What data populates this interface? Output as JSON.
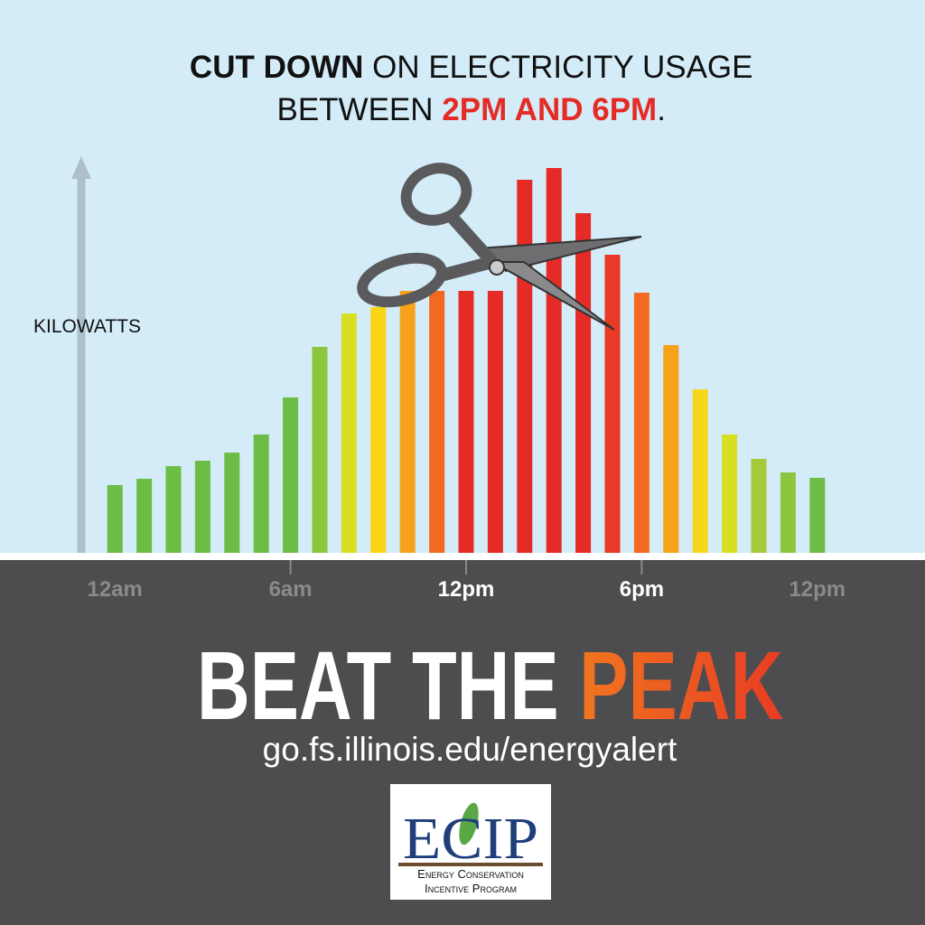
{
  "headline": {
    "line1": [
      "CUT DOWN",
      " ON ELECTRICITY USAGE"
    ],
    "line2": [
      "BETWEEN ",
      "2PM AND 6PM",
      "."
    ]
  },
  "chart_data": {
    "type": "bar",
    "ylabel": "KILOWATTS",
    "x": [
      0,
      1,
      2,
      3,
      4,
      5,
      6,
      7,
      8,
      9,
      10,
      11,
      12,
      13,
      14,
      15,
      16,
      17,
      18,
      19,
      20,
      21,
      22,
      23,
      24
    ],
    "values": [
      75,
      82,
      96,
      102,
      111,
      131,
      172,
      228,
      265,
      272,
      290,
      290,
      290,
      290,
      413,
      426,
      376,
      330,
      288,
      230,
      181,
      131,
      104,
      89,
      83
    ],
    "colors": [
      "#6cbd45",
      "#6cbd45",
      "#6cbd45",
      "#6cbd45",
      "#6cbd45",
      "#6cbd45",
      "#6cbd45",
      "#8cc63f",
      "#d8df22",
      "#fbd616",
      "#f7a21b",
      "#f26a21",
      "#e52b25",
      "#e52b25",
      "#e52b25",
      "#e52b25",
      "#e52b25",
      "#e83a24",
      "#f26a21",
      "#f7a21b",
      "#f5d71c",
      "#d8df22",
      "#a6c93b",
      "#8cc63f",
      "#6cbd45"
    ],
    "xlim": [
      -0.5,
      24.5
    ],
    "ylim": [
      0,
      440
    ],
    "xticks": [
      {
        "value": 0,
        "label": "12am"
      },
      {
        "value": 6,
        "label": "6am"
      },
      {
        "value": 12,
        "label": "12pm"
      },
      {
        "value": 18,
        "label": "6pm"
      },
      {
        "value": 24,
        "label": "12pm"
      }
    ],
    "xtick_colors": [
      "#8a8a8c",
      "#8a8a8c",
      "#ffffff",
      "#ffffff",
      "#8a8a8c"
    ]
  },
  "banner": {
    "title": [
      "BEAT THE ",
      "PEAK"
    ],
    "url": "go.fs.illinois.edu/energyalert"
  },
  "logo": {
    "acronym": "ECIP",
    "line1": "Energy Conservation",
    "line2": "Incentive Program"
  }
}
